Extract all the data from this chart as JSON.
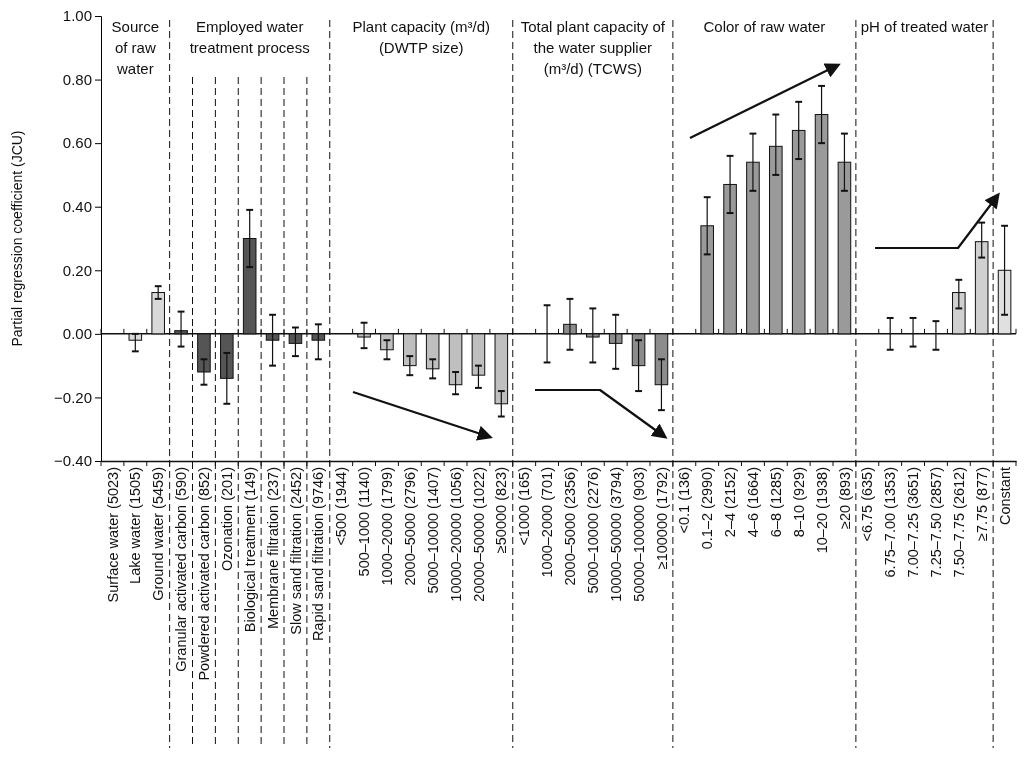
{
  "chart_data": {
    "type": "bar",
    "ylabel": "Partial regression coefficient (JCU)",
    "categories": [
      "Surface water (5023)",
      "Lake water (1505)",
      "Ground water (5459)",
      "Granular activated carbon (590)",
      "Powdered activated carbon (852)",
      "Ozonation (201)",
      "Biological treatment (149)",
      "Membrane filtration (237)",
      "Slow sand filtration (2452)",
      "Rapid sand filtration (9746)",
      "<500 (1944)",
      "500–1000 (1140)",
      "1000–2000 (1799)",
      "2000–5000 (2796)",
      "5000–10000 (1407)",
      "10000–20000 (1056)",
      "20000–50000 (1022)",
      "≥50000 (823)",
      "<1000 (165)",
      "1000–2000 (701)",
      "2000–5000 (2356)",
      "5000–10000 (2276)",
      "10000–50000 (3794)",
      "50000–100000 (903)",
      "≥100000 (1792)",
      "<0.1 (136)",
      "0.1–2 (2990)",
      "2–4 (2152)",
      "4–6 (1664)",
      "6–8 (1285)",
      "8–10 (929)",
      "10–20 (1938)",
      "≥20 (893)",
      "<6.75 (635)",
      "6.75–7.00 (1353)",
      "7.00–7.25 (3651)",
      "7.25–7.50 (2857)",
      "7.50–7.75 (2612)",
      "≥7.75 (877)",
      "Constant"
    ],
    "values": [
      null,
      -0.02,
      0.13,
      0.01,
      -0.12,
      -0.14,
      0.3,
      -0.02,
      -0.03,
      -0.02,
      null,
      -0.01,
      -0.05,
      -0.1,
      -0.11,
      -0.16,
      -0.13,
      -0.22,
      null,
      0.0,
      0.03,
      -0.01,
      -0.03,
      -0.1,
      -0.16,
      null,
      0.34,
      0.47,
      0.54,
      0.59,
      0.64,
      0.69,
      0.54,
      null,
      0.0,
      0.0,
      0.0,
      0.13,
      0.29,
      0.2
    ],
    "errors": [
      null,
      [
        -0.055,
        0.0
      ],
      [
        0.11,
        0.15
      ],
      [
        -0.04,
        0.07
      ],
      [
        -0.16,
        -0.08
      ],
      [
        -0.22,
        -0.06
      ],
      [
        0.21,
        0.39
      ],
      [
        -0.1,
        0.06
      ],
      [
        -0.07,
        0.02
      ],
      [
        -0.08,
        0.03
      ],
      null,
      [
        -0.045,
        0.035
      ],
      [
        -0.08,
        -0.02
      ],
      [
        -0.13,
        -0.07
      ],
      [
        -0.14,
        -0.08
      ],
      [
        -0.19,
        -0.12
      ],
      [
        -0.17,
        -0.1
      ],
      [
        -0.26,
        -0.18
      ],
      null,
      [
        -0.09,
        0.09
      ],
      [
        -0.05,
        0.11
      ],
      [
        -0.09,
        0.08
      ],
      [
        -0.11,
        0.06
      ],
      [
        -0.18,
        -0.02
      ],
      [
        -0.24,
        -0.08
      ],
      null,
      [
        0.25,
        0.43
      ],
      [
        0.38,
        0.56
      ],
      [
        0.45,
        0.63
      ],
      [
        0.5,
        0.69
      ],
      [
        0.55,
        0.73
      ],
      [
        0.6,
        0.78
      ],
      [
        0.45,
        0.63
      ],
      null,
      [
        -0.05,
        0.05
      ],
      [
        -0.04,
        0.05
      ],
      [
        -0.05,
        0.04
      ],
      [
        0.08,
        0.17
      ],
      [
        0.24,
        0.35
      ],
      [
        0.06,
        0.34
      ]
    ],
    "colors": [
      null,
      "#d9d9d9",
      "#d9d9d9",
      "#555555",
      "#555555",
      "#555555",
      "#555555",
      "#555555",
      "#555555",
      "#555555",
      null,
      "#bfbfbf",
      "#bfbfbf",
      "#bfbfbf",
      "#bfbfbf",
      "#bfbfbf",
      "#bfbfbf",
      "#bfbfbf",
      null,
      "#8c8c8c",
      "#8c8c8c",
      "#8c8c8c",
      "#8c8c8c",
      "#8c8c8c",
      "#8c8c8c",
      null,
      "#9a9a9a",
      "#9a9a9a",
      "#9a9a9a",
      "#9a9a9a",
      "#9a9a9a",
      "#9a9a9a",
      "#9a9a9a",
      null,
      "#d0d0d0",
      "#d0d0d0",
      "#d0d0d0",
      "#d0d0d0",
      "#d0d0d0",
      "#e0e0e0"
    ],
    "ylim": [
      -0.4,
      1.0
    ],
    "yticks": [
      {
        "value": -0.4,
        "label": "−0.40"
      },
      {
        "value": -0.2,
        "label": "−0.20"
      },
      {
        "value": 0,
        "label": "0.00"
      },
      {
        "value": 0.2,
        "label": "0.20"
      },
      {
        "value": 0.4,
        "label": "0.40"
      },
      {
        "value": 0.6,
        "label": "0.60"
      },
      {
        "value": 0.8,
        "label": "0.80"
      },
      {
        "value": 1.0,
        "label": "1.00"
      }
    ],
    "annotations": [
      "Source of raw water",
      "Employed water treatment process",
      "Plant capacity (m³/d) (DWTP size)",
      "Total plant capacity of the water supplier (m³/d) (TCWS)",
      "Color of raw water",
      "pH of treated water"
    ],
    "grid": false
  }
}
